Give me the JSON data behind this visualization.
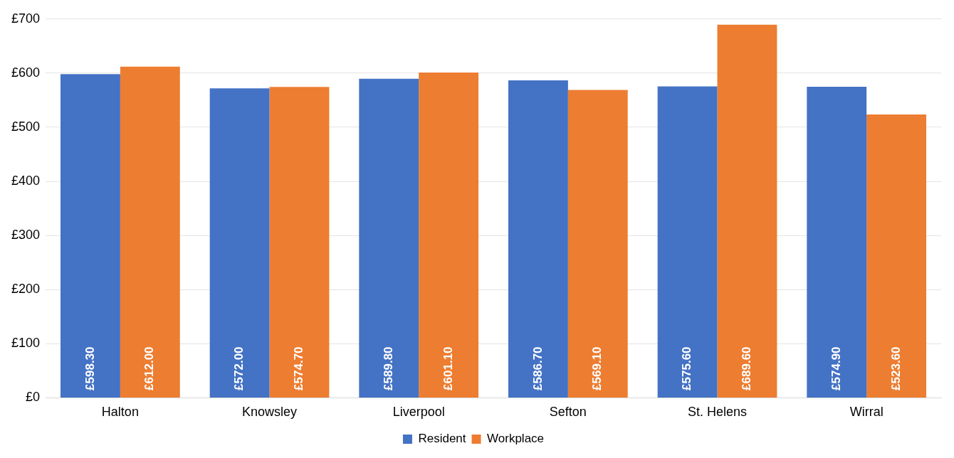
{
  "chart_data": {
    "type": "bar",
    "categories": [
      "Halton",
      "Knowsley",
      "Liverpool",
      "Sefton",
      "St. Helens",
      "Wirral"
    ],
    "series": [
      {
        "name": "Resident",
        "color": "#4472c4",
        "values": [
          598.3,
          572.0,
          589.8,
          586.7,
          575.6,
          574.9
        ],
        "value_labels": [
          "£598.30",
          "£572.00",
          "£589.80",
          "£586.70",
          "£575.60",
          "£574.90"
        ]
      },
      {
        "name": "Workplace",
        "color": "#ed7d31",
        "values": [
          612.0,
          574.7,
          601.1,
          569.1,
          689.6,
          523.6
        ],
        "value_labels": [
          "£612.00",
          "£574.70",
          "£601.10",
          "£569.10",
          "£689.60",
          "£523.60"
        ]
      }
    ],
    "ylim": [
      0,
      700
    ],
    "yticks": [
      {
        "value": 0,
        "label": "£0"
      },
      {
        "value": 100,
        "label": "£100"
      },
      {
        "value": 200,
        "label": "£200"
      },
      {
        "value": 300,
        "label": "£300"
      },
      {
        "value": 400,
        "label": "£400"
      },
      {
        "value": 500,
        "label": "£500"
      },
      {
        "value": 600,
        "label": "£600"
      },
      {
        "value": 700,
        "label": "£700"
      }
    ],
    "grid": "y",
    "legend": "bottom"
  }
}
